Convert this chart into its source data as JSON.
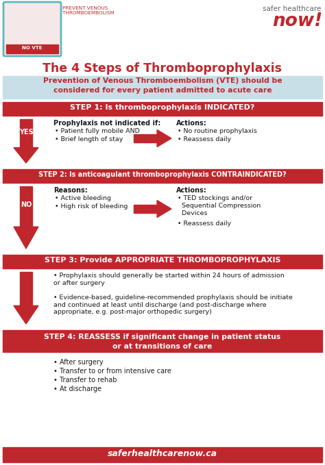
{
  "bg_color": "#ffffff",
  "red": "#c0272d",
  "light_blue_bg": "#c8dfe8",
  "title": "The 4 Steps of Thromboprophylaxis",
  "subtitle_line1": "Prevention of Venous Thromboembolism (VTE) should be",
  "subtitle_line2": "considered for every patient admitted to acute care",
  "step1_header": "STEP 1: Is thromboprophylaxis INDICATED?",
  "step1_left_title": "Prophylaxis not indicated if:",
  "step1_left_bullets": [
    "Patient fully mobile AND",
    "Brief length of stay"
  ],
  "step1_right_title": "Actions:",
  "step1_right_bullets": [
    "No routine prophylaxis",
    "Reassess daily"
  ],
  "step1_label": "YES",
  "step2_header": "STEP 2: Is anticoagulant thromboprophylaxis CONTRAINDICATED?",
  "step2_left_title": "Reasons:",
  "step2_left_bullets": [
    "Active bleeding",
    "High risk of bleeding"
  ],
  "step2_right_title": "Actions:",
  "step2_right_bullets_line1": "TED stockings and/or",
  "step2_right_bullets_line2": "Sequential Compression",
  "step2_right_bullets_line3": "Devices",
  "step2_right_bullet2": "Reassess daily",
  "step2_label": "NO",
  "step3_header": "STEP 3: Provide APPROPRIATE THROMBOPROPHYLAXIS",
  "step3_bullet1": "Prophylaxis should generally be started within 24 hours of admission\nor after surgery",
  "step3_bullet2": "Evidence-based, guideline-recommended prophylaxis should be initiate\nand continued at least until discharge (and post-discharge where\nappropriate, e.g. post-major orthopedic surgery)",
  "step4_header_line1": "STEP 4: REASSESS if significant change in patient status",
  "step4_header_line2": "or at transitions of care",
  "step4_bullets": [
    "After surgery",
    "Transfer to or from intensive care",
    "Transfer to rehab",
    "At discharge"
  ],
  "footer": "saferhealthcarenow.ca",
  "logo_text1": "NO VTE",
  "logo_subtext": "PREVENT VENOUS\nTHROMBOEMBOLISM",
  "logo_right1": "safer healthcare",
  "logo_right2": "now!"
}
